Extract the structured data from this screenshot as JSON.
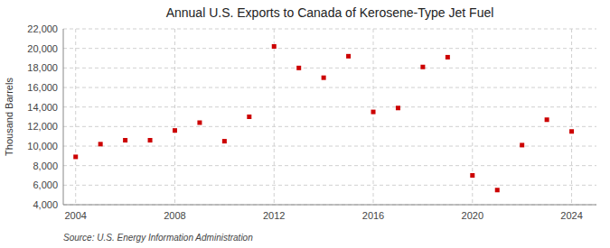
{
  "chart_data": {
    "type": "scatter",
    "title": "Annual U.S. Exports to Canada of Kerosene-Type Jet Fuel",
    "ylabel": "Thousand Barrels",
    "source": "Source: U.S. Energy Information Administration",
    "x": [
      2004,
      2005,
      2006,
      2007,
      2008,
      2009,
      2010,
      2011,
      2012,
      2013,
      2014,
      2015,
      2016,
      2017,
      2018,
      2019,
      2020,
      2021,
      2022,
      2023,
      2024
    ],
    "values": [
      8900,
      10200,
      10600,
      10600,
      11600,
      12400,
      10500,
      13000,
      20200,
      18000,
      17000,
      19200,
      13500,
      13900,
      18100,
      19100,
      7000,
      5500,
      10100,
      12700,
      11500
    ],
    "color": "#cc0000",
    "marker": "square",
    "xlim": [
      2003.5,
      2025
    ],
    "ylim": [
      4000,
      22000
    ],
    "xticks": [
      2004,
      2008,
      2012,
      2016,
      2020,
      2024
    ],
    "yticks": [
      {
        "value": 4000,
        "label": "4,000"
      },
      {
        "value": 6000,
        "label": "6,000"
      },
      {
        "value": 8000,
        "label": "8,000"
      },
      {
        "value": 10000,
        "label": "10,000"
      },
      {
        "value": 12000,
        "label": "12,000"
      },
      {
        "value": 14000,
        "label": "14,000"
      },
      {
        "value": 16000,
        "label": "16,000"
      },
      {
        "value": 18000,
        "label": "18,000"
      },
      {
        "value": 20000,
        "label": "20,000"
      },
      {
        "value": 22000,
        "label": "22,000"
      }
    ],
    "grid": true
  }
}
